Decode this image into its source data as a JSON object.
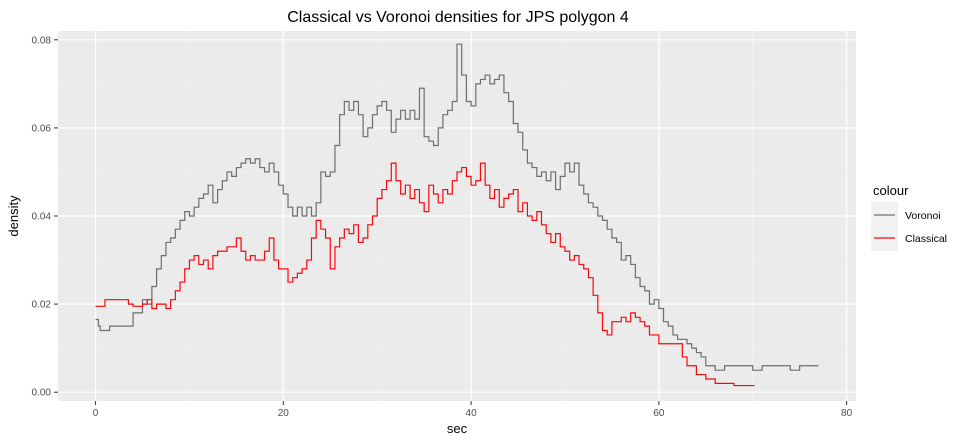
{
  "chart_data": {
    "type": "line",
    "title": "Classical vs Voronoi densities for JPS polygon 4",
    "xlabel": "sec",
    "ylabel": "density",
    "xlim": [
      -4,
      81
    ],
    "ylim": [
      -0.002,
      0.082
    ],
    "x_ticks": [
      0,
      20,
      40,
      60,
      80
    ],
    "x_tick_labels": [
      "0",
      "20",
      "40",
      "60",
      "80"
    ],
    "y_ticks": [
      0.0,
      0.02,
      0.04,
      0.06,
      0.08
    ],
    "y_tick_labels": [
      "0.00",
      "0.02",
      "0.04",
      "0.06",
      "0.08"
    ],
    "grid": true,
    "legend": {
      "title": "colour",
      "placement": "right"
    },
    "series": [
      {
        "name": "Voronoi",
        "color": "#6e6e6e",
        "points": [
          [
            0,
            0.0165
          ],
          [
            0.3,
            0.015
          ],
          [
            0.5,
            0.014
          ],
          [
            1,
            0.014
          ],
          [
            1.5,
            0.015
          ],
          [
            2.5,
            0.015
          ],
          [
            3.5,
            0.015
          ],
          [
            4,
            0.018
          ],
          [
            5,
            0.021
          ],
          [
            5.5,
            0.02
          ],
          [
            6,
            0.024
          ],
          [
            6.5,
            0.028
          ],
          [
            7,
            0.031
          ],
          [
            7.5,
            0.034
          ],
          [
            8,
            0.035
          ],
          [
            8.5,
            0.037
          ],
          [
            9,
            0.039
          ],
          [
            9.5,
            0.041
          ],
          [
            10,
            0.04
          ],
          [
            10.5,
            0.042
          ],
          [
            11,
            0.044
          ],
          [
            11.5,
            0.045
          ],
          [
            12,
            0.047
          ],
          [
            12.5,
            0.043
          ],
          [
            13,
            0.046
          ],
          [
            13.5,
            0.048
          ],
          [
            14,
            0.05
          ],
          [
            14.5,
            0.049
          ],
          [
            15,
            0.051
          ],
          [
            15.5,
            0.052
          ],
          [
            16,
            0.053
          ],
          [
            16.5,
            0.052
          ],
          [
            17,
            0.053
          ],
          [
            17.5,
            0.051
          ],
          [
            18,
            0.05
          ],
          [
            18.5,
            0.052
          ],
          [
            19,
            0.05
          ],
          [
            19.5,
            0.047
          ],
          [
            20,
            0.045
          ],
          [
            20.5,
            0.042
          ],
          [
            21,
            0.04
          ],
          [
            21.5,
            0.042
          ],
          [
            22,
            0.04
          ],
          [
            22.5,
            0.042
          ],
          [
            23,
            0.04
          ],
          [
            23.5,
            0.043
          ],
          [
            24,
            0.05
          ],
          [
            24.5,
            0.049
          ],
          [
            25,
            0.05
          ],
          [
            25.5,
            0.056
          ],
          [
            26,
            0.063
          ],
          [
            26.5,
            0.066
          ],
          [
            27,
            0.064
          ],
          [
            27.5,
            0.066
          ],
          [
            28,
            0.063
          ],
          [
            28.5,
            0.058
          ],
          [
            29,
            0.06
          ],
          [
            29.5,
            0.063
          ],
          [
            30,
            0.065
          ],
          [
            30.5,
            0.066
          ],
          [
            31,
            0.064
          ],
          [
            31.5,
            0.059
          ],
          [
            32,
            0.062
          ],
          [
            32.5,
            0.064
          ],
          [
            33,
            0.062
          ],
          [
            33.5,
            0.064
          ],
          [
            34,
            0.062
          ],
          [
            34.5,
            0.069
          ],
          [
            35,
            0.058
          ],
          [
            35.5,
            0.057
          ],
          [
            36,
            0.056
          ],
          [
            36.5,
            0.06
          ],
          [
            37,
            0.063
          ],
          [
            37.5,
            0.064
          ],
          [
            38,
            0.066
          ],
          [
            38.5,
            0.079
          ],
          [
            39,
            0.072
          ],
          [
            39.5,
            0.066
          ],
          [
            40,
            0.065
          ],
          [
            40.5,
            0.07
          ],
          [
            41,
            0.071
          ],
          [
            41.5,
            0.072
          ],
          [
            42,
            0.07
          ],
          [
            42.5,
            0.071
          ],
          [
            43,
            0.072
          ],
          [
            43.5,
            0.068
          ],
          [
            44,
            0.066
          ],
          [
            44.5,
            0.061
          ],
          [
            45,
            0.059
          ],
          [
            45.5,
            0.055
          ],
          [
            46,
            0.052
          ],
          [
            46.5,
            0.051
          ],
          [
            47,
            0.049
          ],
          [
            47.5,
            0.05
          ],
          [
            48,
            0.048
          ],
          [
            48.5,
            0.05
          ],
          [
            49,
            0.046
          ],
          [
            49.5,
            0.049
          ],
          [
            50,
            0.052
          ],
          [
            50.5,
            0.05
          ],
          [
            51,
            0.052
          ],
          [
            51.5,
            0.047
          ],
          [
            52,
            0.045
          ],
          [
            52.5,
            0.043
          ],
          [
            53,
            0.042
          ],
          [
            53.5,
            0.04
          ],
          [
            54,
            0.039
          ],
          [
            54.5,
            0.037
          ],
          [
            55,
            0.035
          ],
          [
            55.5,
            0.034
          ],
          [
            56,
            0.03
          ],
          [
            56.5,
            0.031
          ],
          [
            57,
            0.029
          ],
          [
            57.5,
            0.026
          ],
          [
            58,
            0.024
          ],
          [
            58.5,
            0.023
          ],
          [
            59,
            0.02
          ],
          [
            59.5,
            0.021
          ],
          [
            60,
            0.019
          ],
          [
            60.5,
            0.016
          ],
          [
            61,
            0.015
          ],
          [
            61.5,
            0.013
          ],
          [
            62,
            0.012
          ],
          [
            62.5,
            0.012
          ],
          [
            63,
            0.011
          ],
          [
            63.5,
            0.01
          ],
          [
            64,
            0.009
          ],
          [
            64.5,
            0.008
          ],
          [
            65,
            0.006
          ],
          [
            66,
            0.005
          ],
          [
            67,
            0.006
          ],
          [
            69,
            0.006
          ],
          [
            70,
            0.005
          ],
          [
            71,
            0.006
          ],
          [
            74,
            0.005
          ],
          [
            75,
            0.006
          ],
          [
            77,
            0.006
          ]
        ]
      },
      {
        "name": "Classical",
        "color": "#f8070d",
        "points": [
          [
            0,
            0.0195
          ],
          [
            0.5,
            0.0195
          ],
          [
            1,
            0.021
          ],
          [
            3,
            0.021
          ],
          [
            3.5,
            0.02
          ],
          [
            4,
            0.0195
          ],
          [
            5,
            0.02
          ],
          [
            5.5,
            0.021
          ],
          [
            6,
            0.019
          ],
          [
            6.5,
            0.02
          ],
          [
            7,
            0.02
          ],
          [
            7.5,
            0.019
          ],
          [
            8,
            0.021
          ],
          [
            8.5,
            0.023
          ],
          [
            9,
            0.025
          ],
          [
            9.5,
            0.028
          ],
          [
            10,
            0.03
          ],
          [
            10.5,
            0.031
          ],
          [
            11,
            0.029
          ],
          [
            11.5,
            0.03
          ],
          [
            12,
            0.028
          ],
          [
            12.5,
            0.031
          ],
          [
            13,
            0.032
          ],
          [
            13.5,
            0.032
          ],
          [
            14,
            0.033
          ],
          [
            14.5,
            0.033
          ],
          [
            15,
            0.035
          ],
          [
            15.5,
            0.032
          ],
          [
            16,
            0.03
          ],
          [
            16.5,
            0.031
          ],
          [
            17,
            0.03
          ],
          [
            17.5,
            0.03
          ],
          [
            18,
            0.032
          ],
          [
            18.5,
            0.035
          ],
          [
            19,
            0.03
          ],
          [
            19.5,
            0.028
          ],
          [
            20,
            0.028
          ],
          [
            20.5,
            0.025
          ],
          [
            21,
            0.026
          ],
          [
            21.5,
            0.027
          ],
          [
            22,
            0.028
          ],
          [
            22.5,
            0.03
          ],
          [
            23,
            0.035
          ],
          [
            23.5,
            0.039
          ],
          [
            24,
            0.037
          ],
          [
            24.5,
            0.035
          ],
          [
            25,
            0.028
          ],
          [
            25.5,
            0.033
          ],
          [
            26,
            0.035
          ],
          [
            26.5,
            0.037
          ],
          [
            27,
            0.036
          ],
          [
            27.5,
            0.038
          ],
          [
            28,
            0.034
          ],
          [
            28.5,
            0.035
          ],
          [
            29,
            0.038
          ],
          [
            29.5,
            0.04
          ],
          [
            30,
            0.044
          ],
          [
            30.5,
            0.046
          ],
          [
            31,
            0.048
          ],
          [
            31.5,
            0.052
          ],
          [
            32,
            0.048
          ],
          [
            32.5,
            0.045
          ],
          [
            33,
            0.047
          ],
          [
            33.5,
            0.044
          ],
          [
            34,
            0.046
          ],
          [
            34.5,
            0.043
          ],
          [
            35,
            0.041
          ],
          [
            35.5,
            0.047
          ],
          [
            36,
            0.045
          ],
          [
            36.5,
            0.043
          ],
          [
            37,
            0.046
          ],
          [
            37.5,
            0.045
          ],
          [
            38,
            0.048
          ],
          [
            38.5,
            0.05
          ],
          [
            39,
            0.051
          ],
          [
            39.5,
            0.049
          ],
          [
            40,
            0.047
          ],
          [
            40.5,
            0.048
          ],
          [
            41,
            0.052
          ],
          [
            41.5,
            0.047
          ],
          [
            42,
            0.044
          ],
          [
            42.5,
            0.046
          ],
          [
            43,
            0.042
          ],
          [
            43.5,
            0.044
          ],
          [
            44,
            0.045
          ],
          [
            44.5,
            0.046
          ],
          [
            45,
            0.041
          ],
          [
            45.5,
            0.043
          ],
          [
            46,
            0.04
          ],
          [
            46.5,
            0.039
          ],
          [
            47,
            0.041
          ],
          [
            47.5,
            0.038
          ],
          [
            48,
            0.036
          ],
          [
            48.5,
            0.034
          ],
          [
            49,
            0.036
          ],
          [
            49.5,
            0.033
          ],
          [
            50,
            0.032
          ],
          [
            50.5,
            0.03
          ],
          [
            51,
            0.031
          ],
          [
            51.5,
            0.029
          ],
          [
            52,
            0.028
          ],
          [
            52.5,
            0.026
          ],
          [
            53,
            0.022
          ],
          [
            53.5,
            0.018
          ],
          [
            54,
            0.014
          ],
          [
            54.5,
            0.013
          ],
          [
            55,
            0.016
          ],
          [
            55.5,
            0.016
          ],
          [
            56,
            0.017
          ],
          [
            56.5,
            0.016
          ],
          [
            57,
            0.018
          ],
          [
            57.5,
            0.017
          ],
          [
            58,
            0.016
          ],
          [
            58.5,
            0.015
          ],
          [
            59,
            0.013
          ],
          [
            60,
            0.011
          ],
          [
            62,
            0.011
          ],
          [
            62.5,
            0.008
          ],
          [
            63,
            0.006
          ],
          [
            64,
            0.004
          ],
          [
            65,
            0.003
          ],
          [
            66,
            0.002
          ],
          [
            68,
            0.0015
          ],
          [
            70.2,
            0.0015
          ]
        ]
      }
    ]
  }
}
